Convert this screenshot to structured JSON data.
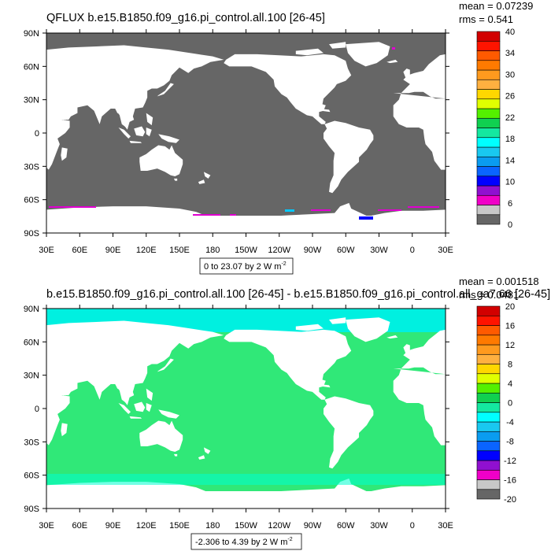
{
  "panels": [
    {
      "title": "QFLUX b.e15.B1850.f09_g16.pi_control.all.100 [26-45]",
      "stats": {
        "mean": "mean = 0.07239",
        "rms": "rms = 0.541"
      },
      "range_box": {
        "text": "0 to 23.07 by 2  W m",
        "superscript": "-2"
      },
      "ocean_color": "#666666",
      "land_color": "#ffffff",
      "colorbar": {
        "colors": [
          "#666666",
          "#c8c8c8",
          "#f000c8",
          "#9010d0",
          "#0000ff",
          "#0a64ff",
          "#0a9cf0",
          "#19c8f0",
          "#00ffff",
          "#14e8a0",
          "#10d050",
          "#54f000",
          "#e0ff00",
          "#ffd700",
          "#ffb040",
          "#ff9a1e",
          "#ff7a00",
          "#ff5a00",
          "#ff1400",
          "#d20000"
        ],
        "labels": [
          "0",
          "6",
          "10",
          "14",
          "18",
          "22",
          "26",
          "30",
          "34",
          "40"
        ]
      }
    },
    {
      "title": "b.e15.B1850.f09_g16.pi_control.all.100 [26-45] - b.e15.B1850.f09_g16.pi_control.all_ga7.66 [26-45]",
      "stats": {
        "mean": "mean = 0.001518",
        "rms": "rms = 0.0481"
      },
      "range_box": {
        "text": "-2.306 to 4.39 by 2  W m",
        "superscript": "-2"
      },
      "ocean_color": "#30e878",
      "land_color": "#ffffff",
      "colorbar": {
        "colors": [
          "#666666",
          "#c8c8c8",
          "#f000c8",
          "#9010d0",
          "#0000ff",
          "#0a64ff",
          "#0a9cf0",
          "#19c8f0",
          "#00ffff",
          "#14e8a0",
          "#10d050",
          "#54f000",
          "#e0ff00",
          "#ffd700",
          "#ffb040",
          "#ff9a1e",
          "#ff7a00",
          "#ff5a00",
          "#ff1400",
          "#d20000"
        ],
        "labels": [
          "-20",
          "-16",
          "-12",
          "-8",
          "-4",
          "0",
          "4",
          "8",
          "12",
          "16",
          "20"
        ]
      }
    }
  ],
  "axes": {
    "lat_labels": [
      "90N",
      "60N",
      "30N",
      "0",
      "30S",
      "60S",
      "90S"
    ],
    "lon_labels": [
      "30E",
      "60E",
      "90E",
      "120E",
      "150E",
      "180",
      "150W",
      "120W",
      "90W",
      "60W",
      "30W",
      "0",
      "30E"
    ]
  },
  "legend_colors": {
    "arctic_ice": "#00f0e0",
    "southern_ocean": "#00ffd0",
    "magenta": "#e000d0",
    "blue": "#0000ff",
    "cyan": "#00c8ff"
  }
}
